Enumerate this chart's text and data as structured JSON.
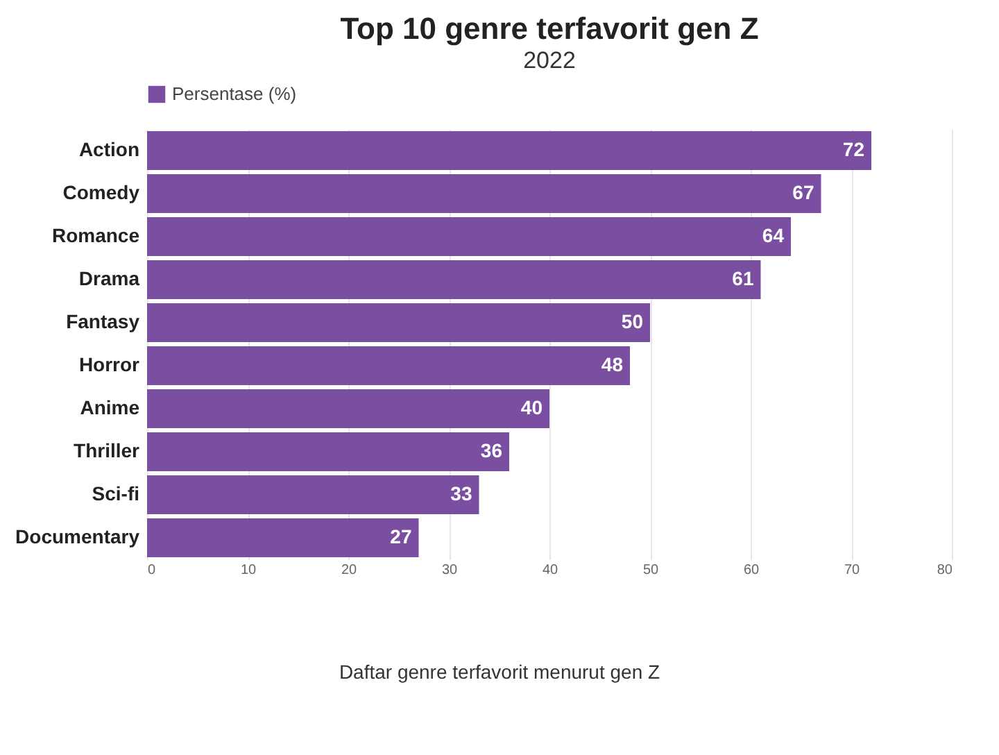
{
  "chart_data": {
    "type": "bar",
    "orientation": "horizontal",
    "title": "Top 10 genre terfavorit gen Z",
    "subtitle": "2022",
    "categories": [
      "Action",
      "Comedy",
      "Romance",
      "Drama",
      "Fantasy",
      "Horror",
      "Anime",
      "Thriller",
      "Sci-fi",
      "Documentary"
    ],
    "series": [
      {
        "name": "Persentase (%)",
        "color": "#7a4fa1",
        "values": [
          72,
          67,
          64,
          61,
          50,
          48,
          40,
          36,
          33,
          27
        ]
      }
    ],
    "xlim": [
      0,
      80
    ],
    "xticks": [
      0,
      10,
      20,
      30,
      40,
      50,
      60,
      70,
      80
    ],
    "grid": "x",
    "legend": "top",
    "data_labels": true,
    "annotations": [
      "Daftar genre terfavorit menurut gen Z"
    ]
  }
}
